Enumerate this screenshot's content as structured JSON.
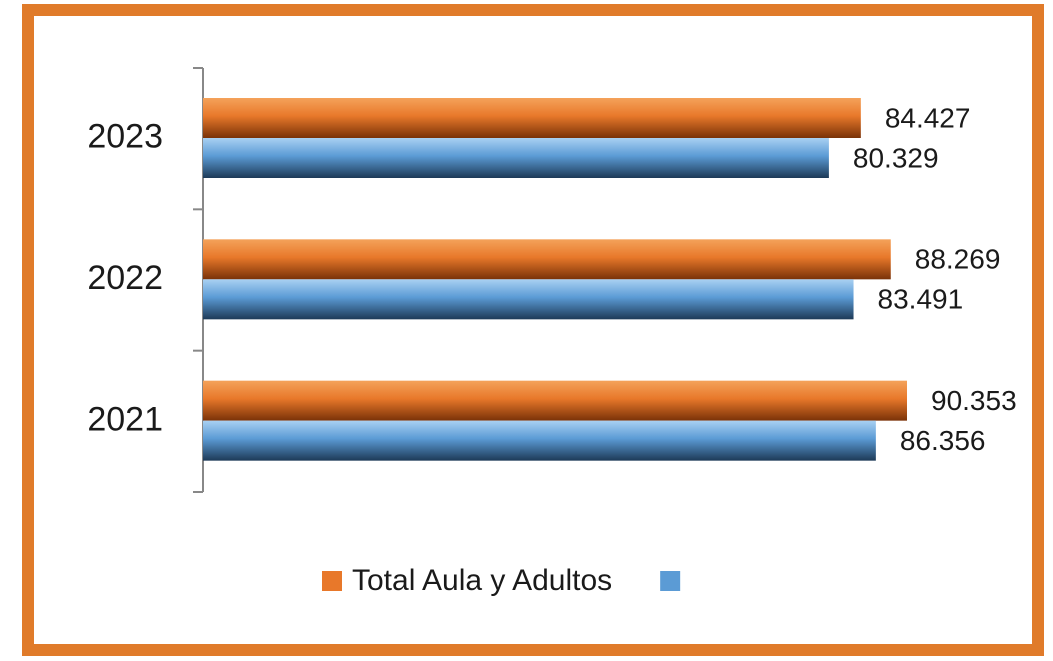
{
  "chart_data": {
    "type": "hbar",
    "categories": [
      "2021",
      "2022",
      "2023"
    ],
    "series": [
      {
        "name": "Total Aula y Adultos",
        "color": "#e8782a",
        "values": [
          90353,
          88269,
          84427
        ],
        "value_labels": [
          "90.353",
          "88.269",
          "84.427"
        ]
      },
      {
        "color": "#5b9bd5",
        "values": [
          86356,
          83491,
          80329
        ],
        "value_labels": [
          "86.356",
          "83.491",
          "80.329"
        ]
      }
    ]
  }
}
